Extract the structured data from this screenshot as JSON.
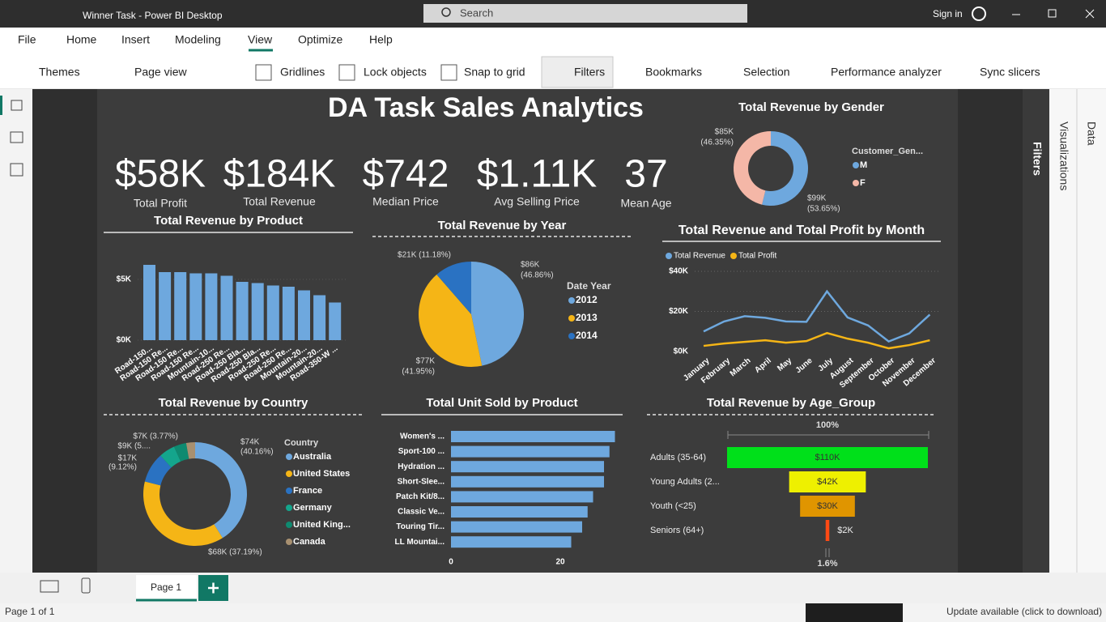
{
  "window": {
    "title": "Winner Task - Power BI Desktop",
    "search": "Search",
    "sign_in": "Sign in"
  },
  "menu": [
    "File",
    "Home",
    "Insert",
    "Modeling",
    "View",
    "Optimize",
    "Help"
  ],
  "ribbon": [
    "Themes",
    "Page view",
    "Gridlines",
    "Lock objects",
    "Snap to grid",
    "Filters",
    "Bookmarks",
    "Selection",
    "Performance analyzer",
    "Sync slicers"
  ],
  "panes": [
    "Filters",
    "Visualizations",
    "Data"
  ],
  "page_tab": "Page 1",
  "status": {
    "page": "Page 1 of 1",
    "update": "Update available (click to download)"
  },
  "report": {
    "title": "DA Task Sales Analytics",
    "kpis": [
      {
        "value": "$58K",
        "label": "Total Profit"
      },
      {
        "value": "$184K",
        "label": "Total Revenue"
      },
      {
        "value": "$742",
        "label": "Median Price"
      },
      {
        "value": "$1.11K",
        "label": "Avg Selling Price"
      },
      {
        "value": "37",
        "label": "Mean Age"
      }
    ],
    "charts": [
      {
        "type": "bar",
        "title": "Total Revenue by Product",
        "color": "#6ea8de",
        "categories": [
          "Road-150...",
          "Road-150 Re...",
          "Road-150 Re...",
          "Road-150 Re...",
          "Mountain-10...",
          "Road-250 Re...",
          "Road-250 Bla...",
          "Road-250 Bla...",
          "Road-250 Re...",
          "Road-250 Re...",
          "Mountain-20...",
          "Mountain-20...",
          "Road-350-W ..."
        ],
        "values": [
          6.2,
          5.6,
          5.6,
          5.5,
          5.5,
          5.3,
          4.8,
          4.7,
          4.5,
          4.4,
          4.1,
          3.7,
          3.1
        ],
        "ylim": [
          0,
          7
        ],
        "yticks": [
          {
            "value": 0,
            "label": "$0K"
          },
          {
            "value": 5,
            "label": "$5K"
          }
        ],
        "grid": true
      },
      {
        "type": "pie",
        "title": "Total Revenue by Year",
        "legend_title": "Date Year",
        "categories": [
          "2012",
          "2013",
          "2014"
        ],
        "values": [
          86,
          77,
          21
        ],
        "value_labels": [
          [
            "$86K",
            "(46.86%)"
          ],
          [
            "$77K",
            "(41.95%)"
          ],
          [
            "$21K (11.18%)"
          ]
        ],
        "colors": [
          "#6ea8de",
          "#f5b516",
          "#2a72c2"
        ]
      },
      {
        "type": "line",
        "title": "Total Revenue and Total Profit by Month",
        "categories": [
          "January",
          "February",
          "March",
          "April",
          "May",
          "June",
          "July",
          "August",
          "September",
          "October",
          "November",
          "December"
        ],
        "series": [
          {
            "name": "Total Revenue",
            "color": "#6ea8de",
            "values": [
              10,
              15,
              17.6,
              16.8,
              15,
              14.8,
              30,
              17,
              13,
              5,
              9,
              18.4
            ]
          },
          {
            "name": "Total Profit",
            "color": "#f5b516",
            "values": [
              2.8,
              4,
              4.8,
              5.6,
              4.4,
              5.2,
              9.2,
              6.4,
              4.4,
              1.6,
              3.2,
              5.6
            ]
          }
        ],
        "ylim": [
          0,
          40
        ],
        "yticks": [
          {
            "value": 0,
            "label": "$0K"
          },
          {
            "value": 20,
            "label": "$20K"
          },
          {
            "value": 40,
            "label": "$40K"
          }
        ],
        "grid": true
      },
      {
        "type": "donut",
        "title": "Total Revenue by Gender",
        "legend_title": "Customer_Gen...",
        "categories": [
          "M",
          "F"
        ],
        "values": [
          99,
          85
        ],
        "value_labels": [
          [
            "$99K",
            "(53.65%)"
          ],
          [
            "$85K",
            "(46.35%)"
          ]
        ],
        "colors": [
          "#6ea8de",
          "#f4b7a7"
        ]
      },
      {
        "type": "donut",
        "title": "Total Revenue by Country",
        "legend_title": "Country",
        "categories": [
          "Australia",
          "United States",
          "France",
          "Germany",
          "United King...",
          "Canada"
        ],
        "values": [
          74,
          68,
          17,
          9,
          7,
          5
        ],
        "value_labels": [
          [
            "$74K",
            "(40.16%)"
          ],
          [
            "$68K (37.19%)"
          ],
          [
            "$17K",
            "(9.12%)"
          ],
          [
            "$9K (5...."
          ],
          [
            "$7K (3.77%)"
          ],
          null
        ],
        "colors": [
          "#6ea8de",
          "#f5b516",
          "#2a72c2",
          "#14a58c",
          "#0e8a70",
          "#a89070"
        ]
      },
      {
        "type": "hbar",
        "title": "Total Unit Sold by Product",
        "color": "#6ea8de",
        "categories": [
          "Women's ...",
          "Sport-100 ...",
          "Hydration ...",
          "Short-Slee...",
          "Patch Kit/8...",
          "Classic Ve...",
          "Touring Tir...",
          "LL Mountai..."
        ],
        "values": [
          30,
          29,
          28,
          28,
          26,
          25,
          24,
          22
        ],
        "xlim": [
          0,
          30
        ],
        "xticks": [
          0,
          20
        ]
      },
      {
        "type": "funnel",
        "title": "Total Revenue by Age_Group",
        "categories": [
          "Adults (35-64)",
          "Young Adults (2...",
          "Youth (<25)",
          "Seniors (64+)"
        ],
        "values": [
          110,
          42,
          30,
          2
        ],
        "value_labels": [
          "$110K",
          "$42K",
          "$30K",
          "$2K"
        ],
        "colors": [
          "#00e01a",
          "#eef000",
          "#e09500",
          "#ff4a14"
        ],
        "top_label": "100%",
        "bottom_label": "1.6%"
      }
    ]
  }
}
